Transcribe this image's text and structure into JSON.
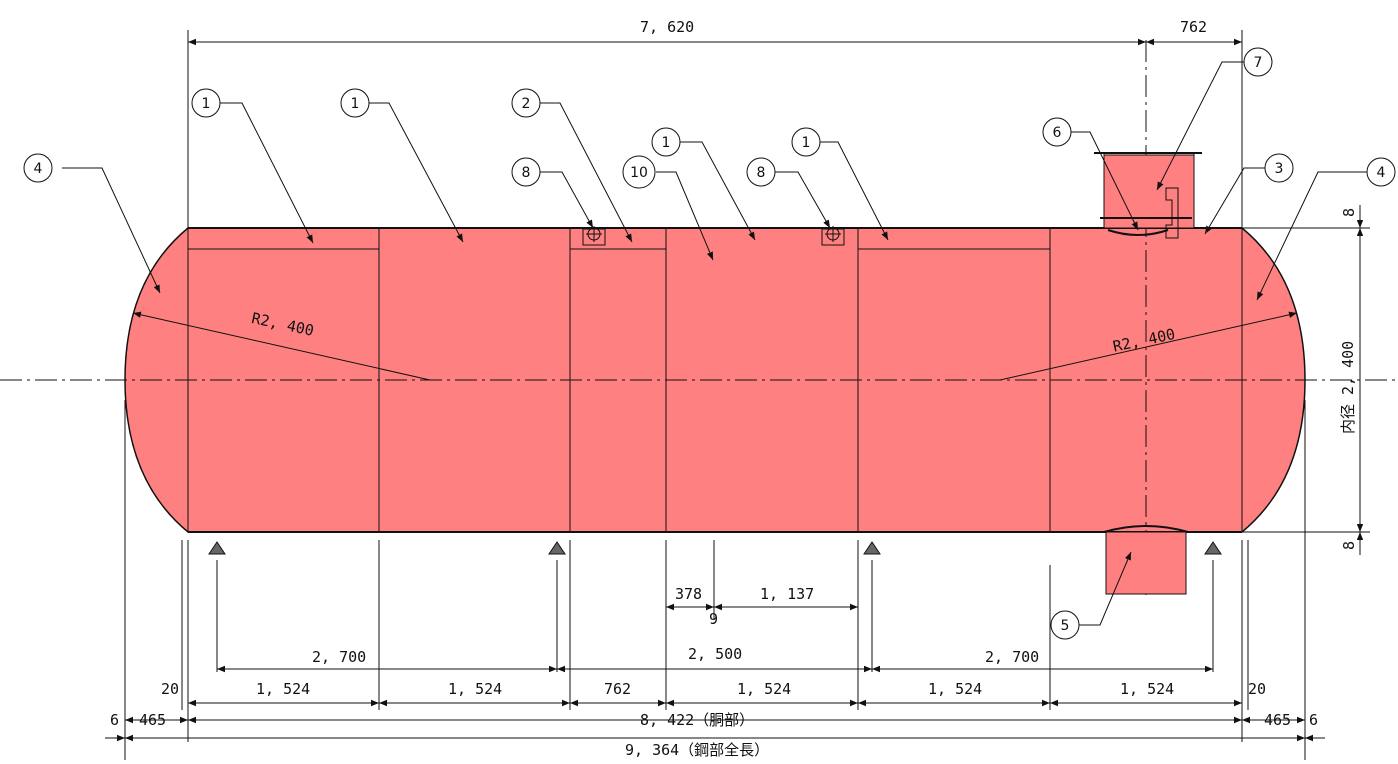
{
  "colors": {
    "tank_fill": "#ff8080",
    "line": "#111111",
    "background": "#ffffff"
  },
  "dimensions": {
    "top_overall": "7, 620",
    "top_right": "762",
    "radius_left": "R2, 400",
    "radius_right": "R2, 400",
    "inner_diameter": "内径 2, 400",
    "shell_thickness_top": "8",
    "shell_thickness_bottom": "8",
    "d378": "378",
    "d9": "9",
    "d1137": "1, 137",
    "support_left": "2, 700",
    "support_mid": "2, 500",
    "support_right": "2, 700",
    "gap_left": "20",
    "gap_right": "20",
    "segments": [
      "1, 524",
      "1, 524",
      "762",
      "1, 524",
      "1, 524",
      "1, 524"
    ],
    "head_left": "465",
    "head_right": "465",
    "edge_left": "6",
    "edge_right": "6",
    "shell_length": "8, 422（胴部）",
    "total_length": "9, 364（鋼部全長）"
  },
  "callouts": {
    "c1a": "1",
    "c1b": "1",
    "c2": "2",
    "c8a": "8",
    "c10": "10",
    "c1c": "1",
    "c8b": "8",
    "c1d": "1",
    "c6": "6",
    "c7": "7",
    "c3": "3",
    "c4left": "4",
    "c4right": "4",
    "c5": "5"
  }
}
